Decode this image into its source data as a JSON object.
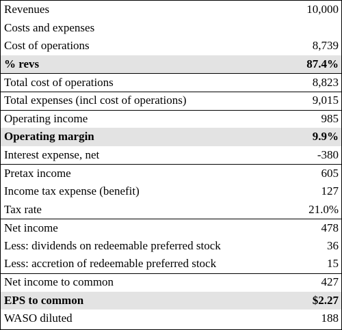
{
  "table": {
    "rows": [
      {
        "label": "Revenues",
        "value": "10,000"
      },
      {
        "label": "Costs and expenses",
        "value": ""
      },
      {
        "label": "Cost of operations",
        "value": "8,739"
      },
      {
        "label": "% revs",
        "value": "87.4%"
      },
      {
        "label": "Total cost of operations",
        "value": "8,823"
      },
      {
        "label": "Total expenses (incl cost of operations)",
        "value": "9,015"
      },
      {
        "label": "Operating income",
        "value": "985"
      },
      {
        "label": "Operating margin",
        "value": "9.9%"
      },
      {
        "label": "Interest expense, net",
        "value": "-380"
      },
      {
        "label": "Pretax income",
        "value": "605"
      },
      {
        "label": "Income tax expense (benefit)",
        "value": "127"
      },
      {
        "label": "Tax rate",
        "value": "21.0%"
      },
      {
        "label": "Net income",
        "value": "478"
      },
      {
        "label": "Less: dividends on redeemable preferred stock",
        "value": "36"
      },
      {
        "label": "Less: accretion of redeemable preferred stock",
        "value": "15"
      },
      {
        "label": "Net income to common",
        "value": "427"
      },
      {
        "label": "EPS to common",
        "value": "$2.27"
      },
      {
        "label": "WASO diluted",
        "value": "188"
      }
    ]
  },
  "colors": {
    "highlight_row": "#e3e3e3",
    "border": "#000000"
  }
}
